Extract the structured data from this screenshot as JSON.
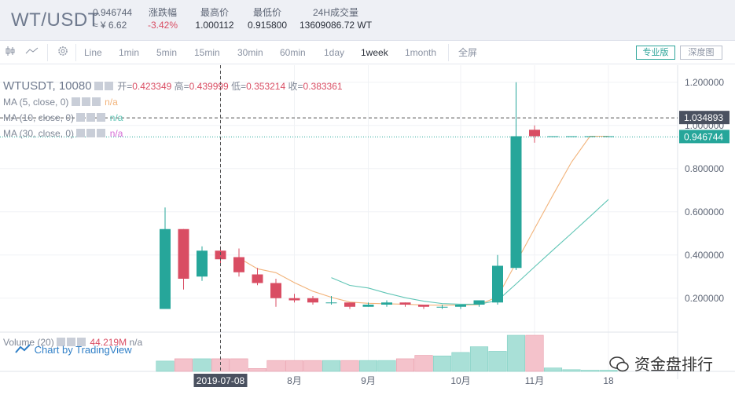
{
  "header": {
    "pair": "WT/USDT",
    "last_price": "0.946744",
    "cny_price": "≈ ¥ 6.62",
    "change_label": "涨跌幅",
    "change_value": "-3.42%",
    "high_label": "最高价",
    "high_value": "1.000112",
    "low_label": "最低价",
    "low_value": "0.915800",
    "vol_label": "24H成交量",
    "vol_value": "13609086.72 WT"
  },
  "toolbar": {
    "items": [
      "Line",
      "1min",
      "5min",
      "15min",
      "30min",
      "60min",
      "1day",
      "1week",
      "1month",
      "全屏"
    ],
    "active": "1week",
    "pro_label": "专业版",
    "depth_label": "深度图",
    "icons": [
      "candles-icon",
      "line-chart-icon",
      "settings-gear-icon"
    ]
  },
  "legend": {
    "symbol": "WTUSDT, 10080",
    "open_label": "开=",
    "open": "0.423349",
    "high_label": "高=",
    "high": "0.439999",
    "low_label": "低=",
    "low": "0.353214",
    "close_label": "收=",
    "close": "0.383361",
    "ma5": "MA (5, close, 0)",
    "ma10": "MA (10, close, 0)",
    "ma30": "MA (30, close, 0)",
    "na": "n/a",
    "volume": "Volume (20)",
    "volume_value": "44.219M",
    "ma_colors": {
      "ma5": "#f2b37a",
      "ma10": "#5fc5b5",
      "ma30": "#d56bd6"
    }
  },
  "branding": {
    "tradingview": "Chart by TradingView",
    "watermark": "资金盘排行"
  },
  "colors": {
    "up": "#26a69a",
    "down": "#d94d63",
    "vol_up": "#a9e0d7",
    "vol_down": "#f4c2cb"
  },
  "chart_data": {
    "type": "candlestick",
    "ylim": [
      0.05,
      1.25
    ],
    "y_ticks": [
      "1.200000",
      "1.000000",
      "0.800000",
      "0.600000",
      "0.400000",
      "0.200000"
    ],
    "y_tick_values": [
      1.2,
      1.0,
      0.8,
      0.6,
      0.4,
      0.2
    ],
    "x_labels": [
      "2019-07-08",
      "8月",
      "9月",
      "10月",
      "11月",
      "18"
    ],
    "x_label_index": [
      3,
      7,
      11,
      16,
      20,
      24
    ],
    "crosshair_price": "1.034893",
    "crosshair_value": 1.034893,
    "current_price": "0.946744",
    "current_value": 0.946744,
    "crosshair_index": 3,
    "candles": [
      {
        "o": 0.15,
        "h": 0.62,
        "l": 0.15,
        "c": 0.52
      },
      {
        "o": 0.52,
        "h": 0.52,
        "l": 0.24,
        "c": 0.29
      },
      {
        "o": 0.3,
        "h": 0.44,
        "l": 0.28,
        "c": 0.42
      },
      {
        "o": 0.42,
        "h": 0.44,
        "l": 0.35,
        "c": 0.38
      },
      {
        "o": 0.39,
        "h": 0.43,
        "l": 0.3,
        "c": 0.32
      },
      {
        "o": 0.31,
        "h": 0.34,
        "l": 0.26,
        "c": 0.27
      },
      {
        "o": 0.27,
        "h": 0.29,
        "l": 0.16,
        "c": 0.2
      },
      {
        "o": 0.2,
        "h": 0.22,
        "l": 0.18,
        "c": 0.19
      },
      {
        "o": 0.2,
        "h": 0.21,
        "l": 0.17,
        "c": 0.18
      },
      {
        "o": 0.18,
        "h": 0.21,
        "l": 0.17,
        "c": 0.18
      },
      {
        "o": 0.18,
        "h": 0.18,
        "l": 0.15,
        "c": 0.16
      },
      {
        "o": 0.16,
        "h": 0.18,
        "l": 0.16,
        "c": 0.17
      },
      {
        "o": 0.17,
        "h": 0.19,
        "l": 0.16,
        "c": 0.18
      },
      {
        "o": 0.18,
        "h": 0.18,
        "l": 0.16,
        "c": 0.17
      },
      {
        "o": 0.17,
        "h": 0.17,
        "l": 0.15,
        "c": 0.16
      },
      {
        "o": 0.16,
        "h": 0.17,
        "l": 0.15,
        "c": 0.16
      },
      {
        "o": 0.16,
        "h": 0.17,
        "l": 0.15,
        "c": 0.17
      },
      {
        "o": 0.17,
        "h": 0.19,
        "l": 0.16,
        "c": 0.19
      },
      {
        "o": 0.18,
        "h": 0.4,
        "l": 0.17,
        "c": 0.35
      },
      {
        "o": 0.34,
        "h": 1.2,
        "l": 0.33,
        "c": 0.95
      },
      {
        "o": 0.98,
        "h": 1.0,
        "l": 0.92,
        "c": 0.95
      },
      {
        "o": 0.95,
        "h": 0.95,
        "l": 0.95,
        "c": 0.95
      },
      {
        "o": 0.95,
        "h": 0.95,
        "l": 0.95,
        "c": 0.95
      },
      {
        "o": 0.95,
        "h": 0.95,
        "l": 0.95,
        "c": 0.95
      },
      {
        "o": 0.95,
        "h": 0.95,
        "l": 0.95,
        "c": 0.95
      }
    ],
    "volume": [
      18,
      22,
      22,
      22,
      22,
      5,
      19,
      19,
      19,
      19,
      19,
      19,
      19,
      22,
      28,
      27,
      33,
      43,
      35,
      63,
      63,
      6,
      3,
      2,
      2
    ]
  }
}
